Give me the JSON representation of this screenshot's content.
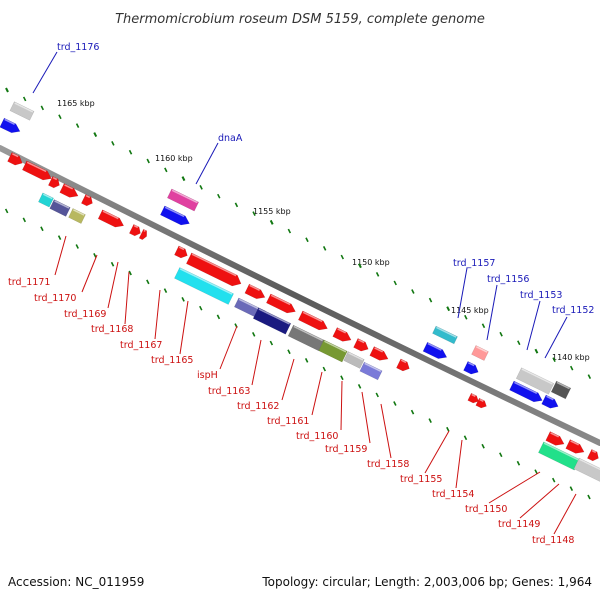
{
  "title": "Thermomicrobium roseum DSM 5159, complete genome",
  "footer": {
    "accession": "Accession: NC_011959",
    "summary": "Topology: circular; Length: 2,003,006 bp; Genes: 1,964"
  },
  "scale_labels": [
    "1165 kbp",
    "1160 kbp",
    "1155 kbp",
    "1150 kbp",
    "1145 kbp",
    "1140 kbp"
  ],
  "colors": {
    "forward_gene": "#ee1111",
    "reverse_gene": "#1111ee",
    "leader_blue": "#1a1ab8",
    "leader_red": "#cc1111",
    "tick": "#117711",
    "backbone": "#777777"
  },
  "labels_top": [
    "trd_1176",
    "dnaA",
    "trd_1157",
    "trd_1156",
    "trd_1153",
    "trd_1152"
  ],
  "labels_bottom": [
    "trd_1171",
    "trd_1170",
    "trd_1169",
    "trd_1168",
    "trd_1167",
    "trd_1165",
    "ispH",
    "trd_1163",
    "trd_1162",
    "trd_1161",
    "trd_1160",
    "trd_1159",
    "trd_1158",
    "trd_1155",
    "trd_1154",
    "trd_1150",
    "trd_1149",
    "trd_1148"
  ]
}
